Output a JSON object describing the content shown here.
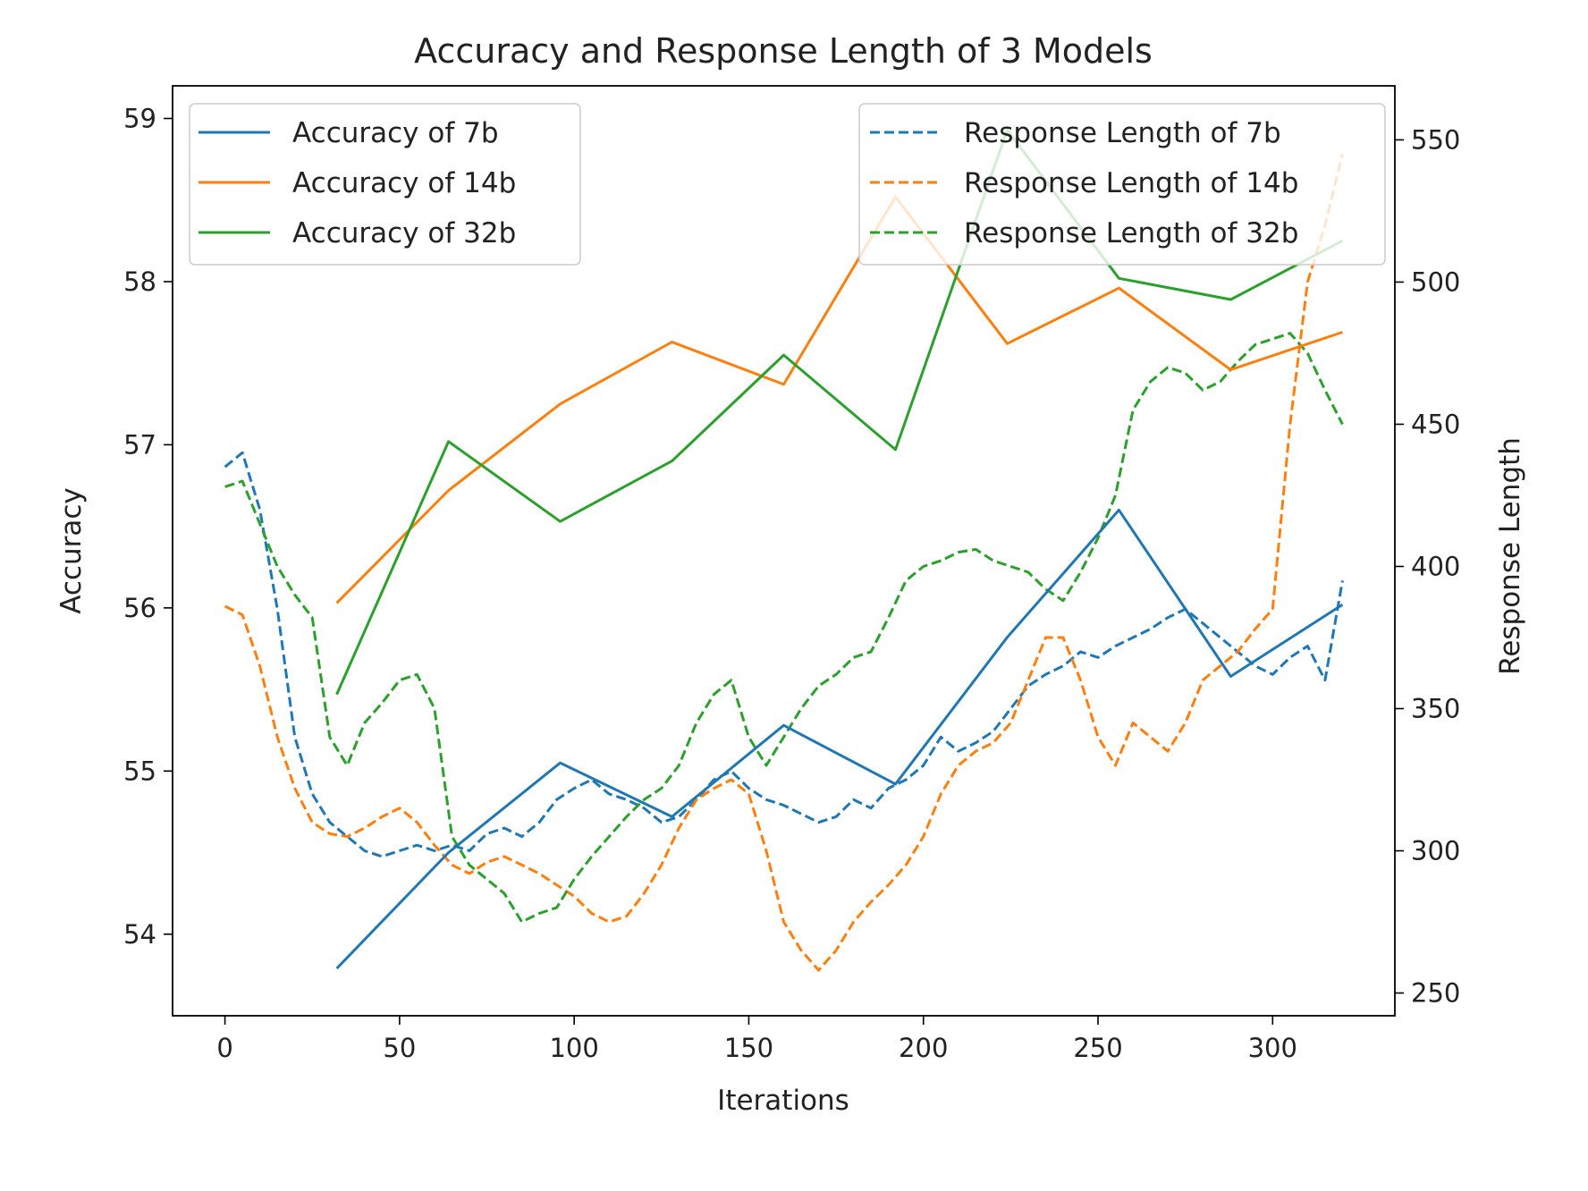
{
  "chart_data": {
    "type": "line",
    "title": "Accuracy and Response Length of 3 Models",
    "xlabel": "Iterations",
    "ylabel_left": "Accuracy",
    "ylabel_right": "Response Length",
    "xlim": [
      -15,
      335
    ],
    "ylim_left": [
      53.5,
      59.2
    ],
    "ylim_right": [
      242,
      569
    ],
    "x_ticks": [
      0,
      50,
      100,
      150,
      200,
      250,
      300
    ],
    "y_ticks_left": [
      54,
      55,
      56,
      57,
      58,
      59
    ],
    "y_ticks_right": [
      250,
      300,
      350,
      400,
      450,
      500,
      550
    ],
    "grid": false,
    "legend_left_placement": "upper-left",
    "legend_right_placement": "upper-right",
    "colors": {
      "7b": "#1f77b4",
      "14b": "#ff7f0e",
      "32b": "#2ca02c"
    },
    "accuracy_series": [
      {
        "name": "Accuracy of 7b",
        "color": "#1f77b4",
        "x": [
          32,
          64,
          96,
          128,
          160,
          192,
          224,
          256,
          288,
          320
        ],
        "values": [
          53.79,
          54.5,
          55.05,
          54.72,
          55.28,
          54.92,
          55.82,
          56.6,
          55.58,
          56.02
        ]
      },
      {
        "name": "Accuracy of 14b",
        "color": "#ff7f0e",
        "x": [
          32,
          64,
          96,
          128,
          160,
          192,
          224,
          256,
          288,
          320
        ],
        "values": [
          56.03,
          56.72,
          57.25,
          57.63,
          57.37,
          58.52,
          57.62,
          57.96,
          57.46,
          57.69
        ]
      },
      {
        "name": "Accuracy of 32b",
        "color": "#2ca02c",
        "x": [
          32,
          64,
          96,
          128,
          160,
          192,
          224,
          256,
          288,
          320
        ],
        "values": [
          55.47,
          57.02,
          56.53,
          56.9,
          57.55,
          56.97,
          58.93,
          58.02,
          57.89,
          58.25
        ]
      }
    ],
    "response_length_series": [
      {
        "name": "Response Length of 7b",
        "color": "#1f77b4",
        "x": [
          0,
          5,
          10,
          15,
          20,
          25,
          30,
          35,
          40,
          45,
          50,
          55,
          60,
          65,
          70,
          75,
          80,
          85,
          90,
          95,
          100,
          105,
          110,
          115,
          120,
          125,
          130,
          135,
          140,
          145,
          150,
          155,
          160,
          165,
          170,
          175,
          180,
          185,
          190,
          195,
          200,
          205,
          210,
          215,
          220,
          225,
          230,
          235,
          240,
          245,
          250,
          255,
          260,
          265,
          270,
          275,
          280,
          285,
          290,
          295,
          300,
          305,
          310,
          315,
          320
        ],
        "values": [
          435,
          440,
          420,
          385,
          340,
          320,
          310,
          305,
          300,
          298,
          300,
          302,
          300,
          302,
          300,
          306,
          308,
          305,
          310,
          318,
          322,
          325,
          320,
          318,
          315,
          310,
          312,
          318,
          325,
          328,
          322,
          318,
          316,
          313,
          310,
          312,
          318,
          315,
          322,
          325,
          330,
          340,
          335,
          338,
          342,
          350,
          358,
          362,
          365,
          370,
          368,
          372,
          375,
          378,
          382,
          385,
          380,
          375,
          370,
          365,
          362,
          368,
          372,
          360,
          395
        ]
      },
      {
        "name": "Response Length of 14b",
        "color": "#ff7f0e",
        "x": [
          0,
          5,
          10,
          15,
          20,
          25,
          30,
          35,
          40,
          45,
          50,
          55,
          60,
          65,
          70,
          75,
          80,
          85,
          90,
          95,
          100,
          105,
          110,
          115,
          120,
          125,
          130,
          135,
          140,
          145,
          150,
          155,
          160,
          165,
          170,
          175,
          180,
          185,
          190,
          195,
          200,
          205,
          210,
          215,
          220,
          225,
          230,
          235,
          240,
          245,
          250,
          255,
          260,
          265,
          270,
          275,
          280,
          285,
          290,
          295,
          300,
          305,
          310,
          315,
          320
        ],
        "values": [
          386,
          383,
          365,
          340,
          322,
          310,
          306,
          305,
          308,
          312,
          315,
          310,
          302,
          295,
          292,
          296,
          298,
          295,
          292,
          288,
          284,
          278,
          275,
          277,
          285,
          295,
          308,
          318,
          322,
          325,
          320,
          300,
          275,
          265,
          258,
          265,
          275,
          282,
          288,
          295,
          305,
          320,
          330,
          335,
          338,
          345,
          360,
          375,
          375,
          360,
          340,
          330,
          345,
          340,
          335,
          345,
          360,
          365,
          370,
          378,
          385,
          450,
          500,
          520,
          545
        ]
      },
      {
        "name": "Response Length of 32b",
        "color": "#2ca02c",
        "x": [
          0,
          5,
          10,
          15,
          20,
          25,
          30,
          35,
          40,
          45,
          50,
          55,
          60,
          65,
          70,
          75,
          80,
          85,
          90,
          95,
          100,
          105,
          110,
          115,
          120,
          125,
          130,
          135,
          140,
          145,
          150,
          155,
          160,
          165,
          170,
          175,
          180,
          185,
          190,
          195,
          200,
          205,
          210,
          215,
          220,
          225,
          230,
          235,
          240,
          245,
          250,
          255,
          260,
          265,
          270,
          275,
          280,
          285,
          290,
          295,
          300,
          305,
          310,
          315,
          320
        ],
        "values": [
          428,
          430,
          415,
          400,
          390,
          382,
          340,
          330,
          345,
          352,
          360,
          362,
          350,
          305,
          295,
          290,
          285,
          275,
          278,
          280,
          290,
          298,
          305,
          312,
          318,
          322,
          330,
          345,
          355,
          360,
          340,
          330,
          340,
          350,
          358,
          362,
          368,
          370,
          382,
          395,
          400,
          402,
          405,
          406,
          402,
          400,
          398,
          392,
          388,
          398,
          410,
          425,
          455,
          465,
          470,
          468,
          462,
          465,
          472,
          478,
          480,
          482,
          475,
          462,
          450
        ]
      }
    ]
  }
}
